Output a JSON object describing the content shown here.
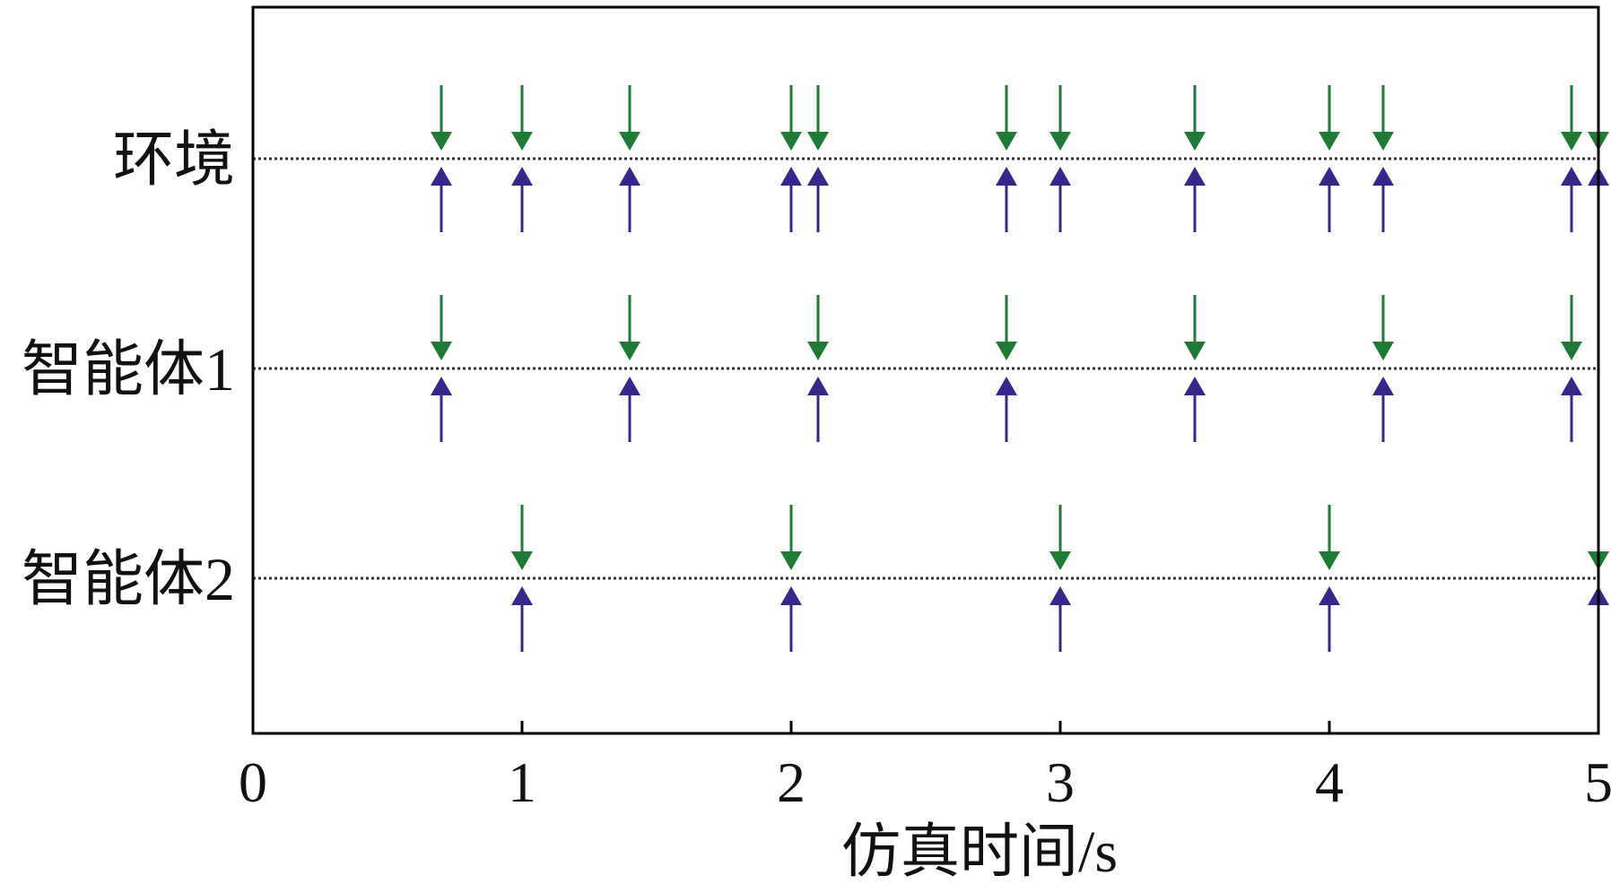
{
  "chart_data": {
    "type": "scatter",
    "title": "",
    "xlabel": "仿真时间/s",
    "ylabel": "",
    "xlim": [
      0,
      5
    ],
    "xticks": [
      0,
      1,
      2,
      3,
      4,
      5
    ],
    "xtick_labels": [
      "0",
      "1",
      "2",
      "3",
      "4",
      "5"
    ],
    "grid": false,
    "legend": "none",
    "colors": {
      "down_arrow": "#1e7a34",
      "up_arrow": "#35288a",
      "axis": "#000000",
      "dotted_line": "#333333"
    },
    "rows": [
      {
        "label": "环境",
        "events": [
          0.7,
          1.0,
          1.4,
          2.0,
          2.1,
          2.8,
          3.0,
          3.5,
          4.0,
          4.2,
          4.9,
          5.0
        ]
      },
      {
        "label": "智能体1",
        "events": [
          0.7,
          1.4,
          2.1,
          2.8,
          3.5,
          4.2,
          4.9
        ]
      },
      {
        "label": "智能体2",
        "events": [
          1.0,
          2.0,
          3.0,
          4.0,
          5.0
        ]
      }
    ]
  }
}
